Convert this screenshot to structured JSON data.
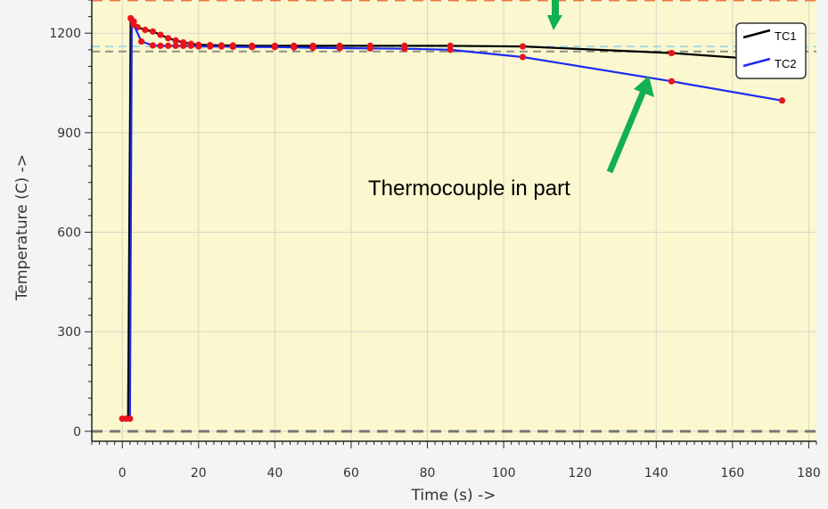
{
  "colors": {
    "plot_bg": "#fbf8cf",
    "grid": "#d7d7c8",
    "axis": "#222222",
    "marker": "#e8141c",
    "arrow": "#12b050",
    "upper_limit": "#e97b45",
    "lower_limit": "#777777",
    "ref_light": "#a9d8e2",
    "ref_dark": "#8f8f82"
  },
  "annotation": {
    "text": "Thermocouple  in part"
  },
  "chart_data": {
    "type": "line",
    "xlabel": "Time (s) ->",
    "ylabel": "Temperature (C) ->",
    "xlim": [
      -8,
      182
    ],
    "ylim": [
      -30,
      1300
    ],
    "x_ticks": [
      0,
      20,
      40,
      60,
      80,
      100,
      120,
      140,
      160,
      180
    ],
    "x_tick_labels": [
      "0",
      "20",
      "40",
      "60",
      "80",
      "100",
      "120",
      "140",
      "160",
      "180"
    ],
    "y_ticks": [
      0,
      300,
      600,
      900,
      1200
    ],
    "y_tick_labels": [
      "0",
      "300",
      "600",
      "900",
      "1200"
    ],
    "grid": true,
    "legend_position": "top-right",
    "reference_lines": [
      {
        "y": 1300,
        "color": "#e97b45",
        "style": "dashed"
      },
      {
        "y": 0,
        "color": "#777777",
        "style": "dashed"
      },
      {
        "y": 1160,
        "color": "#a9d8e2",
        "style": "dashed"
      },
      {
        "y": 1145,
        "color": "#8f8f82",
        "style": "dashed"
      }
    ],
    "series": [
      {
        "name": "TC1",
        "color": "#000000",
        "x": [
          0,
          1.5,
          2.2,
          3,
          4,
          6,
          8,
          10,
          12,
          14,
          16,
          18,
          20,
          23,
          26,
          29,
          34,
          40,
          45,
          50,
          57,
          65,
          74,
          86,
          105,
          144,
          175
        ],
        "y": [
          38,
          38,
          1245,
          1235,
          1218,
          1210,
          1205,
          1195,
          1185,
          1178,
          1172,
          1168,
          1165,
          1164,
          1163,
          1163,
          1162,
          1162,
          1162,
          1162,
          1162,
          1162,
          1162,
          1162,
          1160,
          1140,
          1115
        ],
        "markers": [
          false,
          false,
          true,
          true,
          true,
          true,
          true,
          true,
          true,
          true,
          true,
          true,
          true,
          true,
          true,
          true,
          true,
          true,
          true,
          true,
          true,
          true,
          true,
          true,
          true,
          true,
          false
        ]
      },
      {
        "name": "TC2",
        "color": "#1e2af0",
        "x": [
          0,
          1,
          2,
          2.5,
          3,
          5,
          8,
          10,
          12,
          14,
          16,
          18,
          20,
          23,
          26,
          29,
          34,
          40,
          45,
          50,
          57,
          65,
          74,
          86,
          105,
          144,
          173
        ],
        "y": [
          38,
          38,
          38,
          1240,
          1225,
          1175,
          1163,
          1162,
          1162,
          1162,
          1162,
          1162,
          1160,
          1160,
          1160,
          1159,
          1158,
          1158,
          1157,
          1156,
          1155,
          1154,
          1153,
          1150,
          1128,
          1055,
          997
        ],
        "markers": [
          true,
          true,
          true,
          true,
          true,
          true,
          true,
          true,
          true,
          true,
          true,
          true,
          true,
          true,
          true,
          true,
          true,
          true,
          true,
          true,
          true,
          true,
          true,
          true,
          true,
          true,
          true
        ]
      }
    ]
  }
}
